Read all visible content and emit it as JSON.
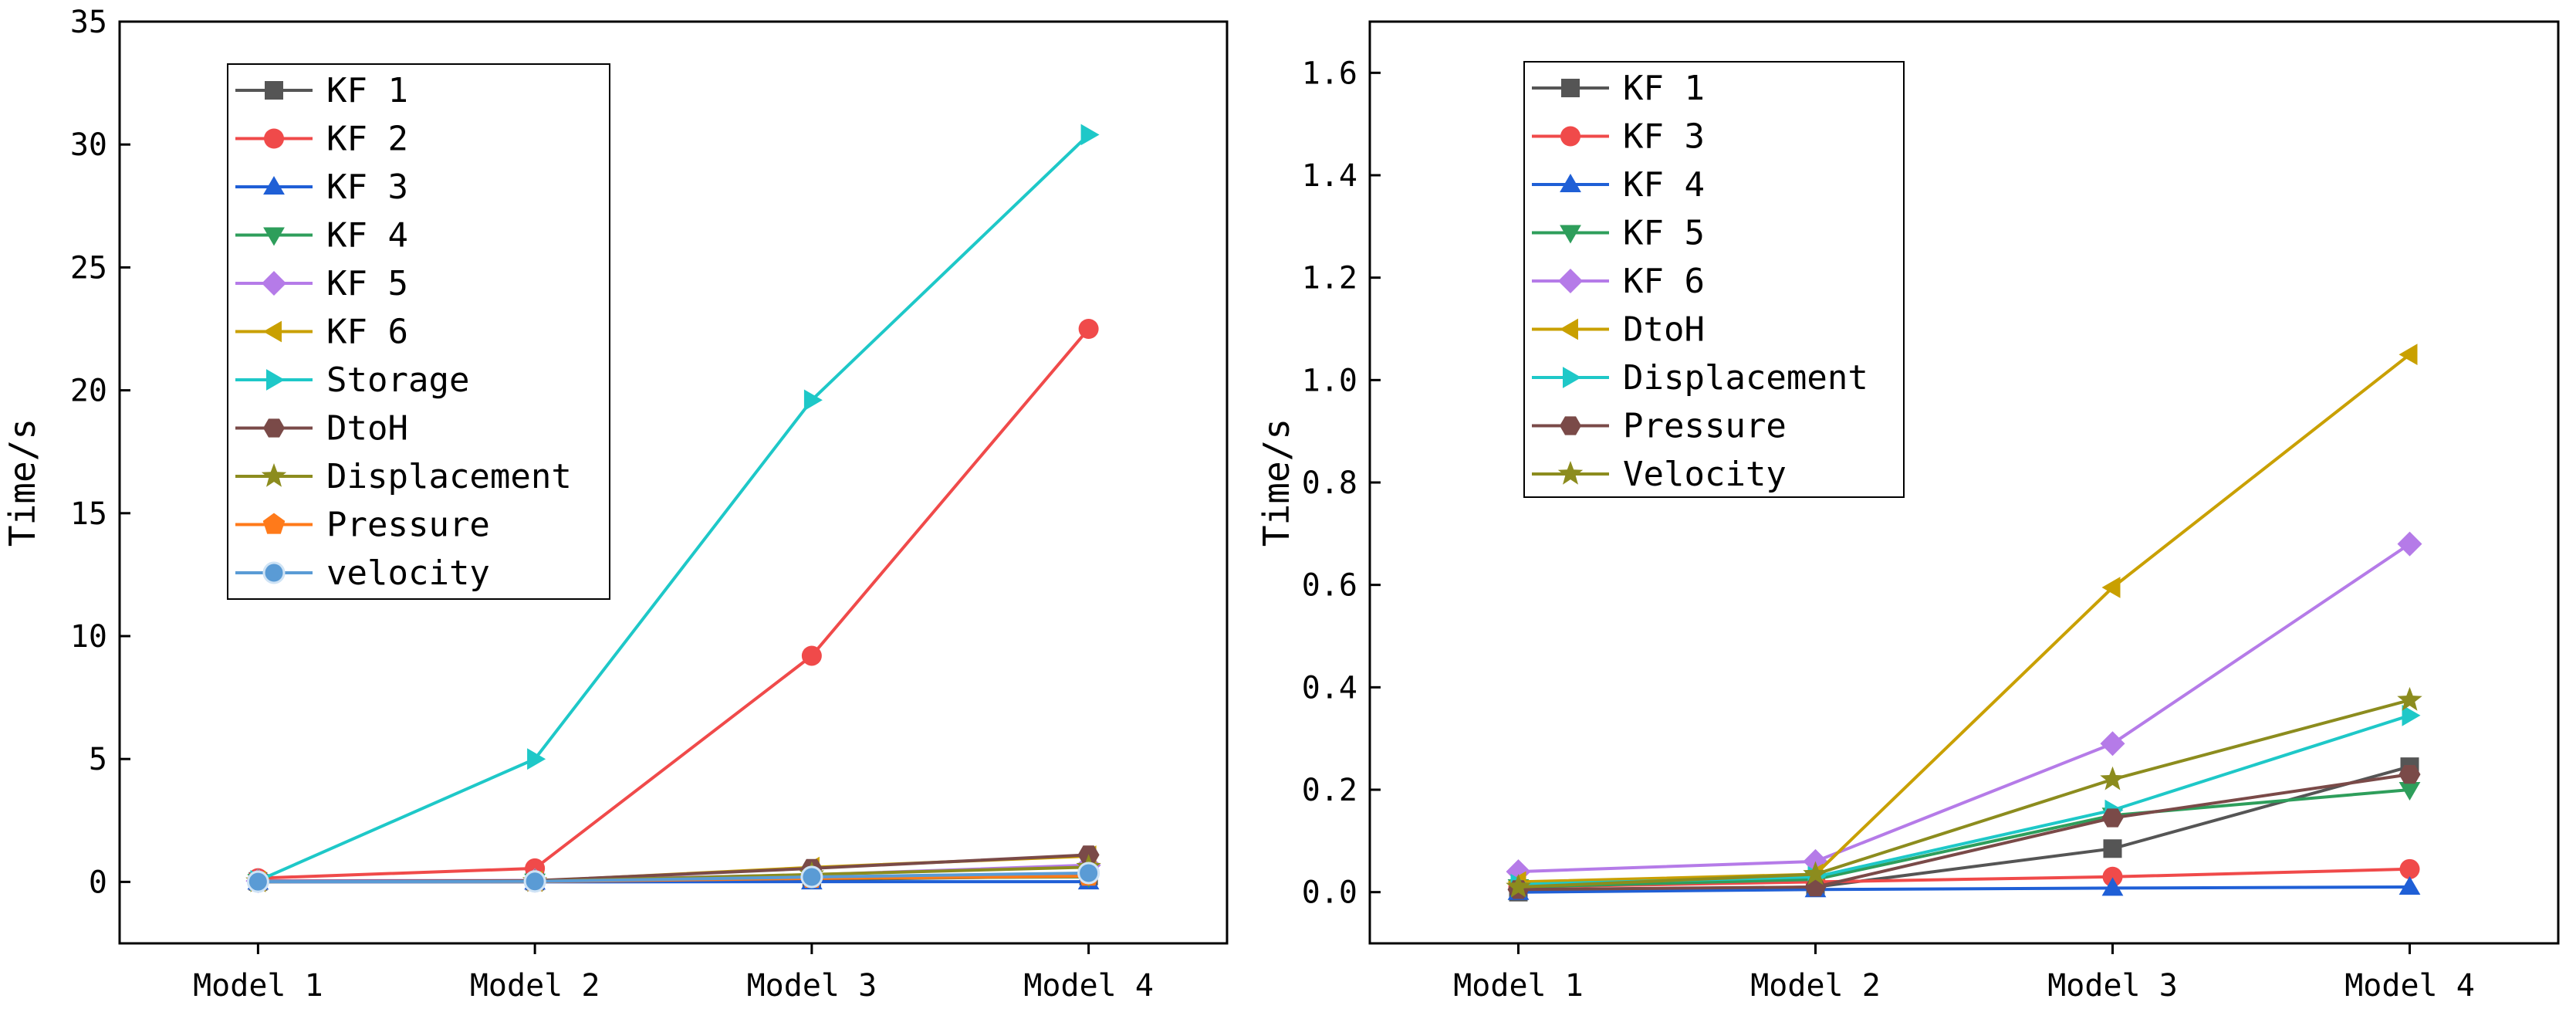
{
  "chart_data": [
    {
      "type": "line",
      "title": "",
      "xlabel": "",
      "ylabel": "Time/s",
      "categories": [
        "Model 1",
        "Model 2",
        "Model 3",
        "Model 4"
      ],
      "ylim": [
        -2.5,
        35
      ],
      "yticks": [
        0,
        5,
        10,
        15,
        20,
        25,
        30,
        35
      ],
      "ytick_labels": [
        "0",
        "5",
        "10",
        "15",
        "20",
        "25",
        "30",
        "35"
      ],
      "legend_position": "top-left",
      "grid": false,
      "series": [
        {
          "name": "KF 1",
          "color": "#555555",
          "marker": "square",
          "values": [
            0.02,
            0.03,
            0.09,
            0.24
          ]
        },
        {
          "name": "KF 2",
          "color": "#f04a4a",
          "marker": "circle",
          "values": [
            0.15,
            0.55,
            9.2,
            22.5
          ]
        },
        {
          "name": "KF 3",
          "color": "#1f5fd6",
          "marker": "triangle-up",
          "values": [
            0.0,
            0.0,
            0.01,
            0.01
          ]
        },
        {
          "name": "KF 4",
          "color": "#2e9e5b",
          "marker": "triangle-down",
          "values": [
            0.01,
            0.02,
            0.15,
            0.2
          ]
        },
        {
          "name": "KF 5",
          "color": "#b57be8",
          "marker": "diamond",
          "values": [
            0.04,
            0.06,
            0.29,
            0.68
          ]
        },
        {
          "name": "KF 6",
          "color": "#c9a000",
          "marker": "triangle-left",
          "values": [
            0.02,
            0.03,
            0.59,
            1.05
          ]
        },
        {
          "name": "Storage",
          "color": "#1ec8c8",
          "marker": "triangle-right",
          "values": [
            0.05,
            5.0,
            19.6,
            30.4
          ]
        },
        {
          "name": "DtoH",
          "color": "#7a4a48",
          "marker": "hexagon",
          "values": [
            0.02,
            0.05,
            0.55,
            1.1
          ]
        },
        {
          "name": "Displacement",
          "color": "#8c8c1e",
          "marker": "star",
          "values": [
            0.01,
            0.02,
            0.3,
            0.6
          ]
        },
        {
          "name": "Pressure",
          "color": "#ff7a1a",
          "marker": "pentagon",
          "values": [
            0.01,
            0.01,
            0.14,
            0.23
          ]
        },
        {
          "name": "velocity",
          "color": "#5a9bd5",
          "marker": "circle-half",
          "values": [
            0.01,
            0.02,
            0.2,
            0.36
          ]
        }
      ]
    },
    {
      "type": "line",
      "title": "",
      "xlabel": "",
      "ylabel": "Time/s",
      "categories": [
        "Model 1",
        "Model 2",
        "Model 3",
        "Model 4"
      ],
      "ylim": [
        -0.1,
        1.7
      ],
      "yticks": [
        0,
        0.2,
        0.4,
        0.6,
        0.8,
        1.0,
        1.2,
        1.4,
        1.6
      ],
      "ytick_labels": [
        "0.0",
        "0.2",
        "0.4",
        "0.6",
        "0.8",
        "1.0",
        "1.2",
        "1.4",
        "1.6"
      ],
      "legend_position": "top-left",
      "grid": false,
      "series": [
        {
          "name": "KF 1",
          "color": "#555555",
          "marker": "square",
          "values": [
            0.0,
            0.01,
            0.085,
            0.245
          ]
        },
        {
          "name": "KF 3",
          "color": "#f04a4a",
          "marker": "circle",
          "values": [
            0.01,
            0.02,
            0.03,
            0.045
          ]
        },
        {
          "name": "KF 4",
          "color": "#1f5fd6",
          "marker": "triangle-up",
          "values": [
            0.0,
            0.005,
            0.008,
            0.01
          ]
        },
        {
          "name": "KF 5",
          "color": "#2e9e5b",
          "marker": "triangle-down",
          "values": [
            0.01,
            0.025,
            0.15,
            0.2
          ]
        },
        {
          "name": "KF 6",
          "color": "#b57be8",
          "marker": "diamond",
          "values": [
            0.04,
            0.06,
            0.29,
            0.68
          ]
        },
        {
          "name": "DtoH",
          "color": "#c9a000",
          "marker": "triangle-left",
          "values": [
            0.02,
            0.035,
            0.595,
            1.05
          ]
        },
        {
          "name": "Displacement",
          "color": "#1ec8c8",
          "marker": "triangle-right",
          "values": [
            0.015,
            0.03,
            0.16,
            0.345
          ]
        },
        {
          "name": "Pressure",
          "color": "#7a4a48",
          "marker": "hexagon",
          "values": [
            0.005,
            0.01,
            0.145,
            0.23
          ]
        },
        {
          "name": "Velocity",
          "color": "#8c8c1e",
          "marker": "star",
          "values": [
            0.01,
            0.035,
            0.22,
            0.375
          ]
        }
      ]
    }
  ]
}
